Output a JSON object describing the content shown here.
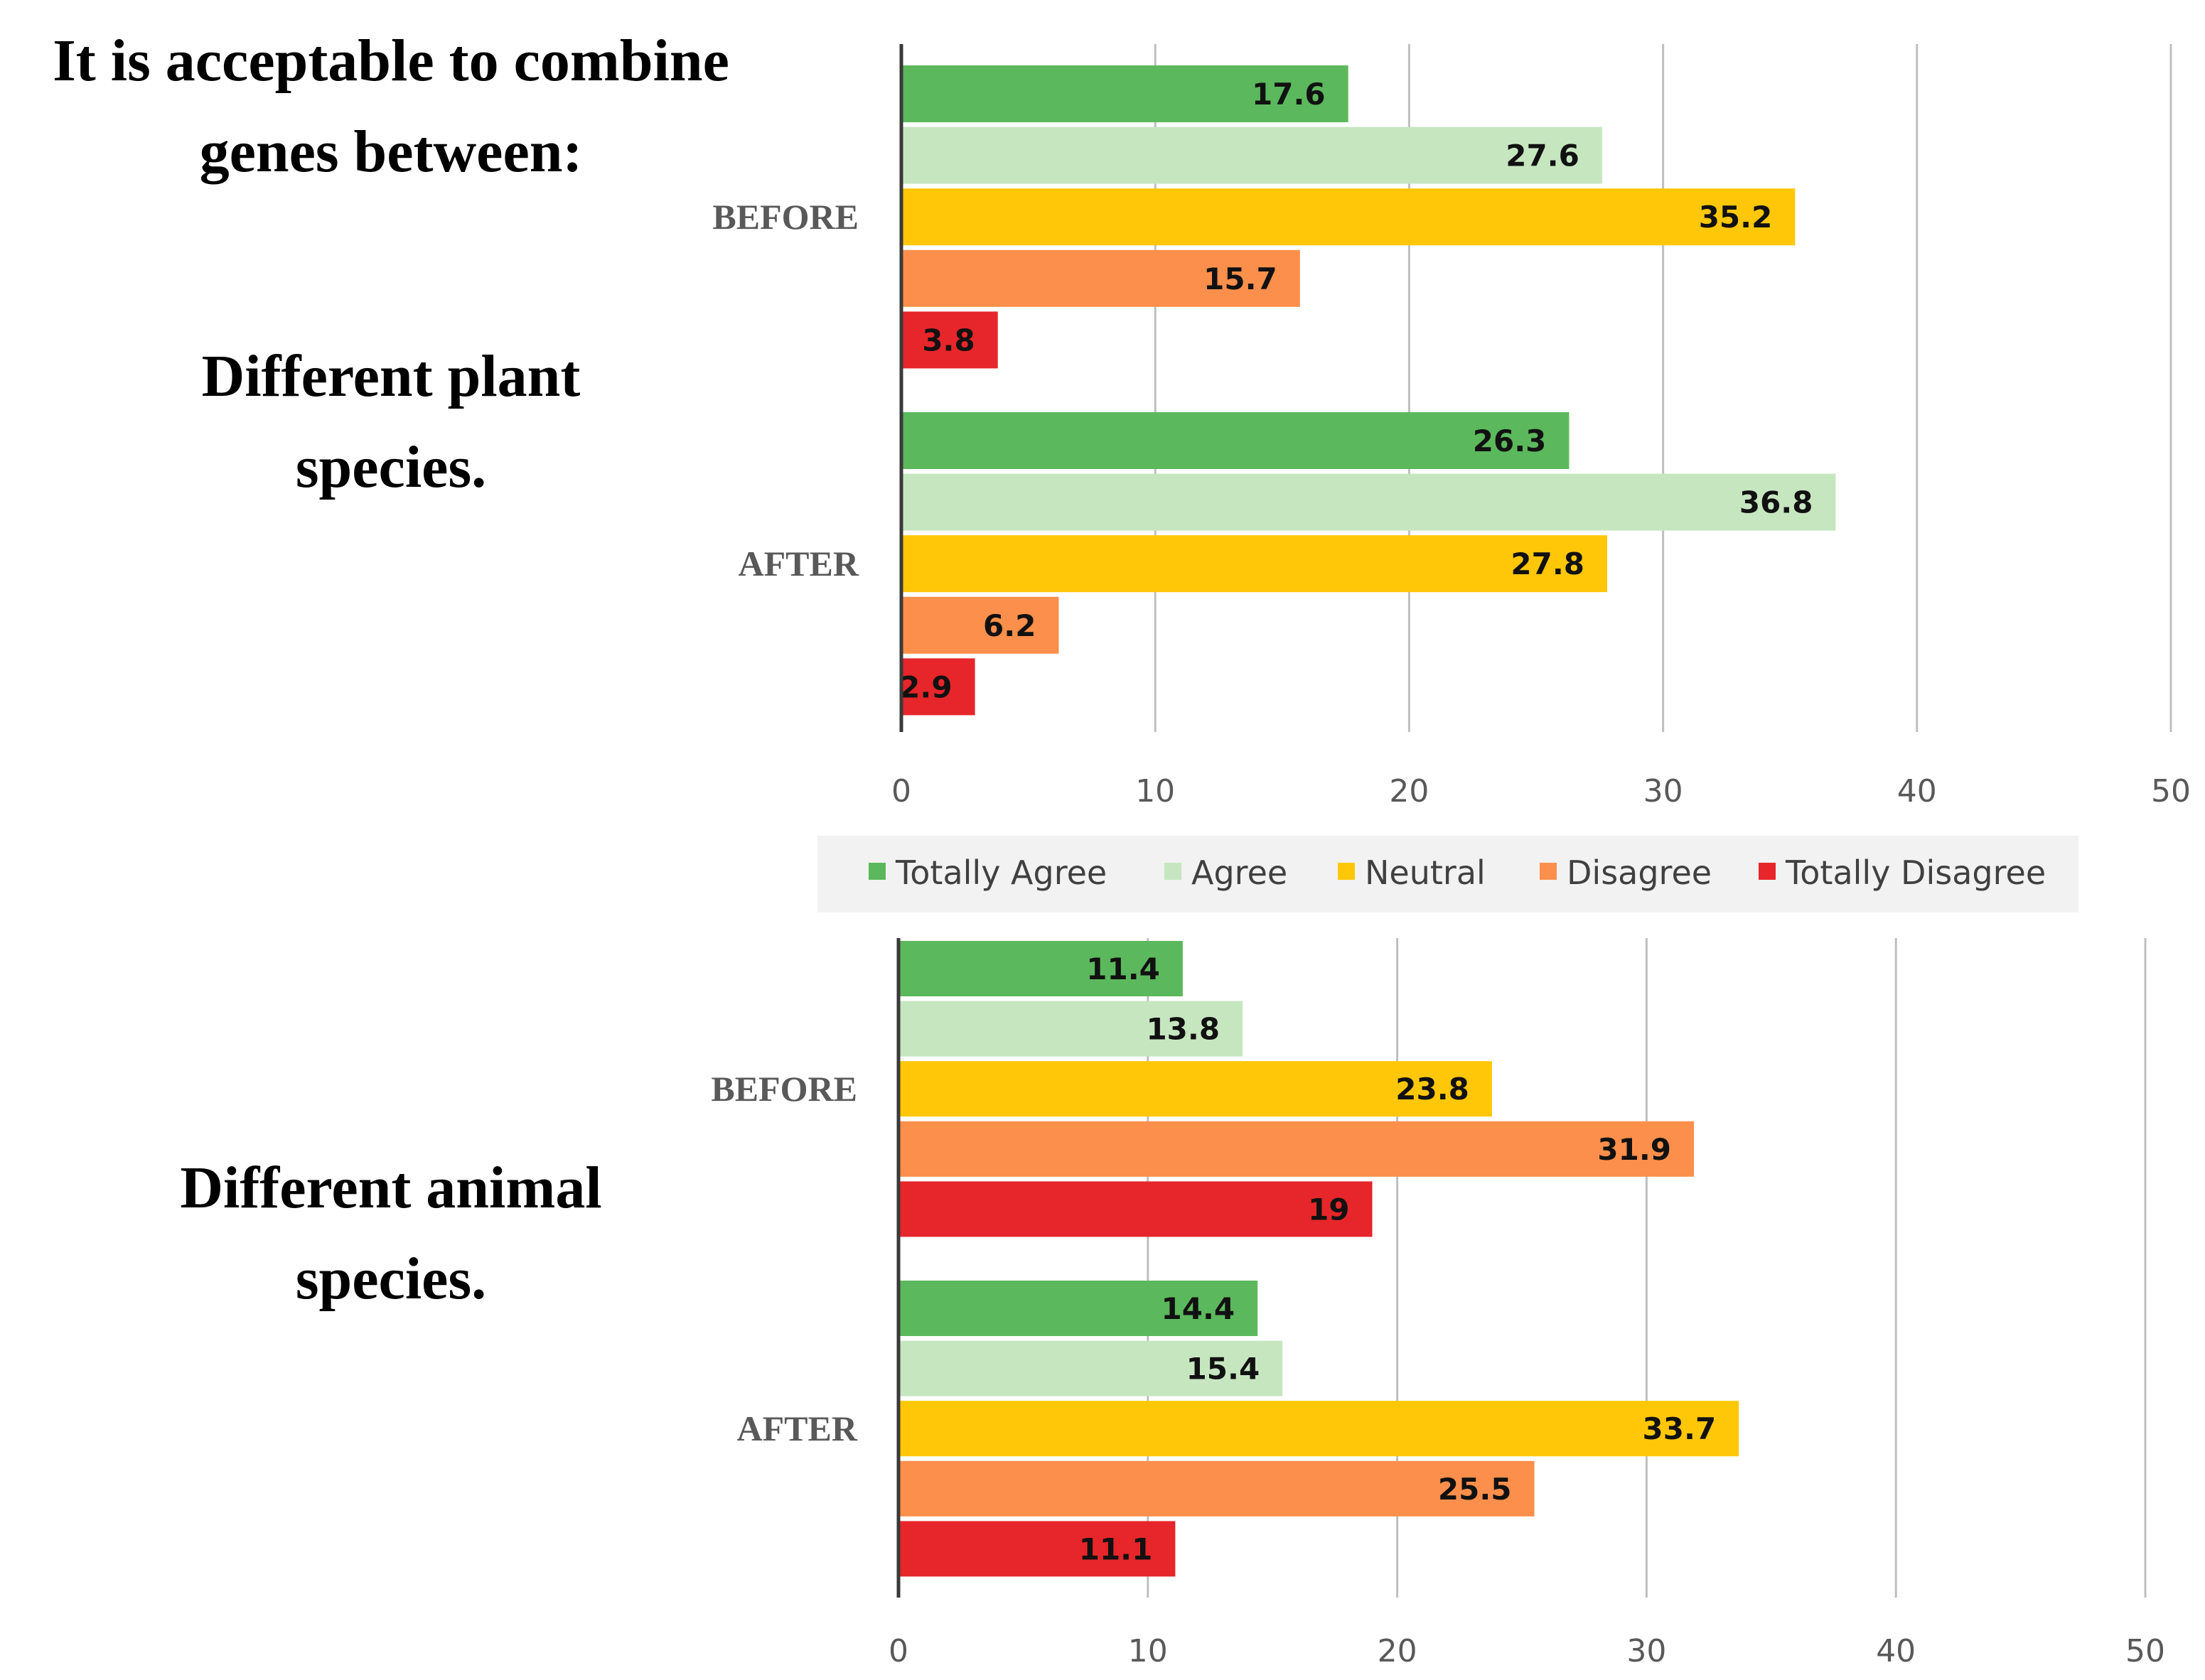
{
  "headings": {
    "main_line1": "It is acceptable to combine",
    "main_line2": "genes between:",
    "plant_line1": "Different plant",
    "plant_line2": "species.",
    "animal_line1": "Different animal",
    "animal_line2": "species."
  },
  "legend": [
    {
      "name": "Totally Agree",
      "color": "#5cb85c"
    },
    {
      "name": "Agree",
      "color": "#c6e6c0"
    },
    {
      "name": "Neutral",
      "color": "#ffc708"
    },
    {
      "name": "Disagree",
      "color": "#fc8f4b"
    },
    {
      "name": "Totally Disagree",
      "color": "#e6262a"
    }
  ],
  "chart_data": [
    {
      "type": "bar",
      "orientation": "horizontal",
      "title": "Different plant species.",
      "categories": [
        "BEFORE",
        "AFTER"
      ],
      "series": [
        {
          "name": "Totally Agree",
          "values": [
            17.6,
            26.3
          ]
        },
        {
          "name": "Agree",
          "values": [
            27.6,
            36.8
          ]
        },
        {
          "name": "Neutral",
          "values": [
            35.2,
            27.8
          ]
        },
        {
          "name": "Disagree",
          "values": [
            15.7,
            6.2
          ]
        },
        {
          "name": "Totally Disagree",
          "values": [
            3.8,
            2.9
          ]
        }
      ],
      "xlim": [
        0,
        50
      ],
      "xticks": [
        "0",
        "10",
        "20",
        "30",
        "40",
        "50"
      ],
      "grid": "vertical",
      "legend": "bottom"
    },
    {
      "type": "bar",
      "orientation": "horizontal",
      "title": "Different animal species.",
      "categories": [
        "BEFORE",
        "AFTER"
      ],
      "series": [
        {
          "name": "Totally Agree",
          "values": [
            11.4,
            14.4
          ]
        },
        {
          "name": "Agree",
          "values": [
            13.8,
            15.4
          ]
        },
        {
          "name": "Neutral",
          "values": [
            23.8,
            33.7
          ]
        },
        {
          "name": "Disagree",
          "values": [
            31.9,
            25.5
          ]
        },
        {
          "name": "Totally Disagree",
          "values": [
            19,
            11.1
          ]
        }
      ],
      "xlim": [
        0,
        50
      ],
      "xticks": [
        "0",
        "10",
        "20",
        "30",
        "40",
        "50"
      ],
      "grid": "vertical",
      "legend": "none"
    }
  ]
}
